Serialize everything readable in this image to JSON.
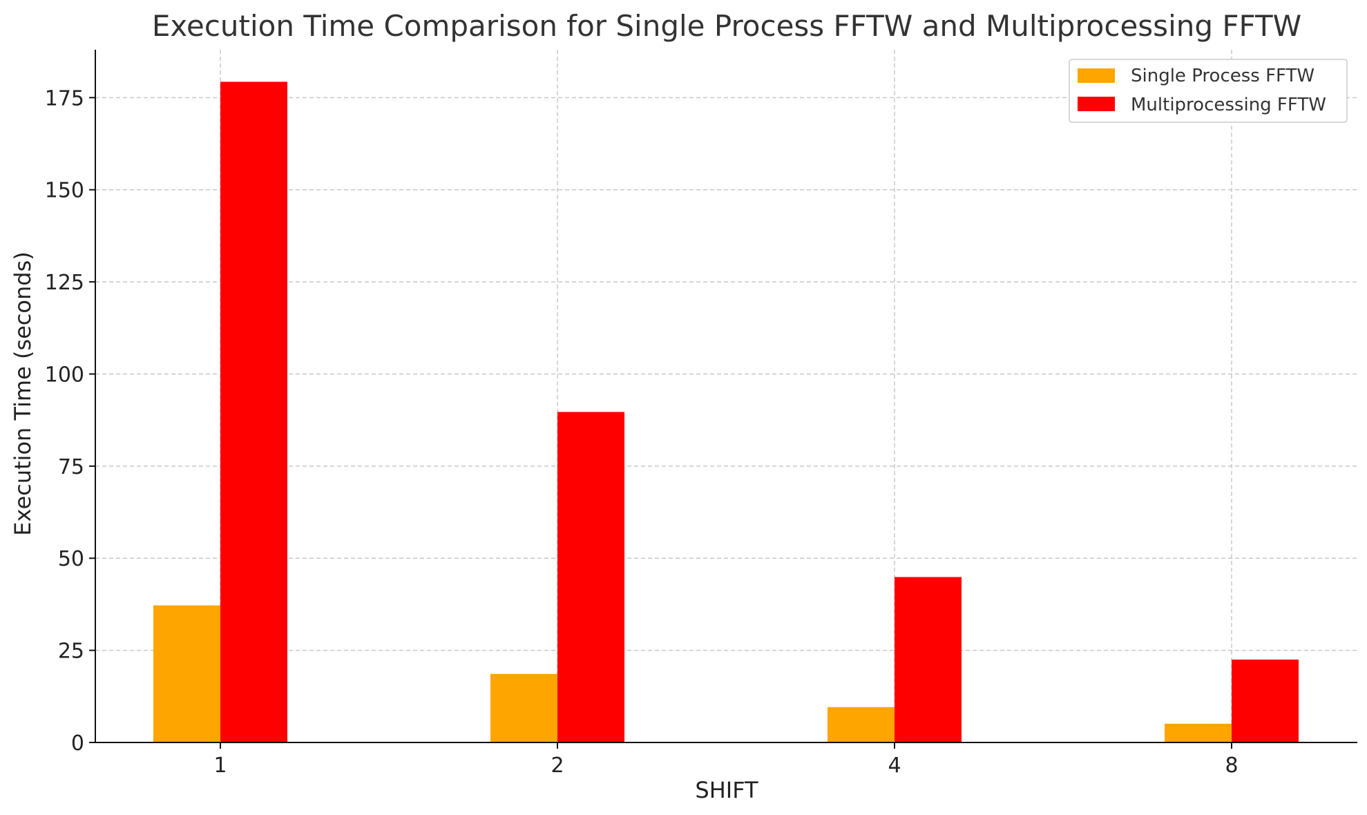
{
  "chart_data": {
    "type": "bar",
    "title": "Execution Time Comparison for Single Process FFTW and Multiprocessing FFTW",
    "xlabel": "SHIFT",
    "ylabel": "Execution Time (seconds)",
    "categories": [
      "1",
      "2",
      "4",
      "8"
    ],
    "series": [
      {
        "name": "Single Process FFTW",
        "color": "#FFA500",
        "values": [
          37.2,
          18.6,
          9.6,
          5.1
        ]
      },
      {
        "name": "Multiprocessing FFTW",
        "color": "#FF0000",
        "values": [
          179.3,
          89.7,
          44.9,
          22.5
        ]
      }
    ],
    "ylim": [
      0,
      188
    ],
    "yticks": [
      0,
      25,
      50,
      75,
      100,
      125,
      150,
      175
    ],
    "grid": true,
    "legend_position": "top-right"
  }
}
